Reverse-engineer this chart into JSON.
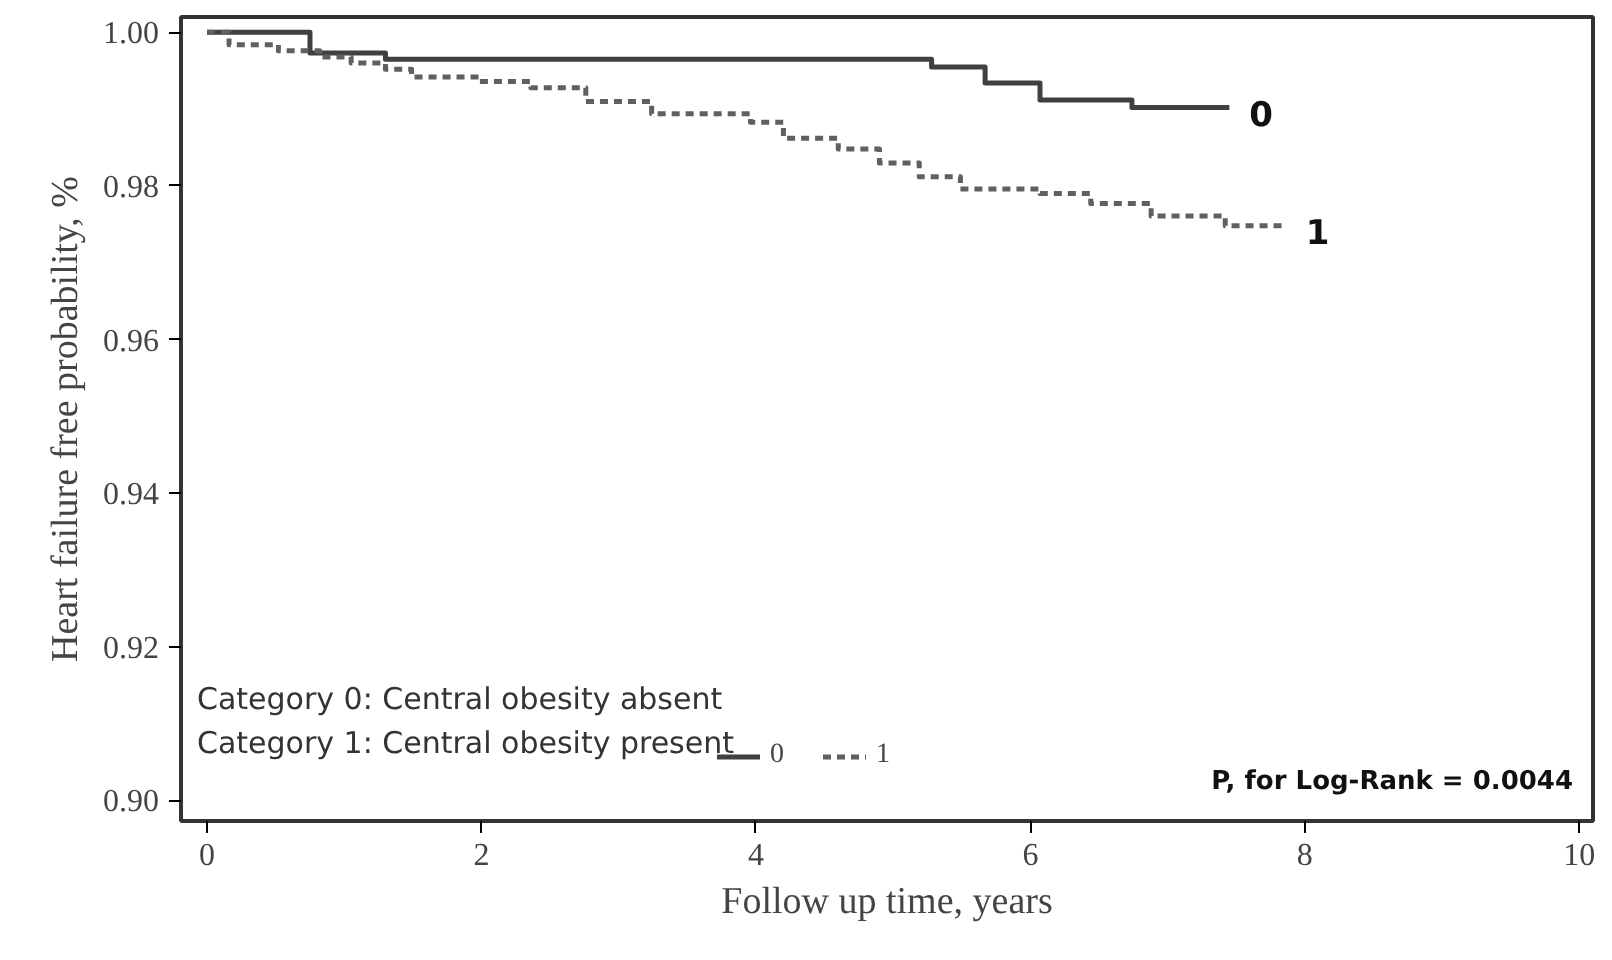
{
  "chart_data": {
    "type": "step",
    "xlabel": "Follow up time, years",
    "ylabel": "Heart failure free probability, %",
    "xlim": [
      -0.19,
      10.1
    ],
    "xticks": [
      0,
      2,
      4,
      6,
      8,
      10
    ],
    "ylim": [
      0.8973,
      1.002
    ],
    "yticks": [
      {
        "value": 0.9,
        "label": "0.90"
      },
      0.92,
      0.94,
      0.96,
      0.98,
      {
        "value": 1.0,
        "label": "1.00"
      }
    ],
    "grid": false,
    "legend": "bottom left",
    "marker": "none",
    "series": [
      {
        "name": "0",
        "color": "#404040",
        "line_style": "solid",
        "x": [
          0,
          0.75,
          1.3,
          5.28,
          5.67,
          6.07,
          6.74,
          7.45
        ],
        "values": [
          1.0,
          0.9973,
          0.9965,
          0.9955,
          0.9934,
          0.9912,
          0.9902,
          0.9902
        ]
      },
      {
        "name": "1",
        "color": "#606060",
        "line_style": "dashed",
        "x": [
          0,
          0.16,
          0.52,
          0.82,
          1.05,
          1.3,
          1.49,
          1.98,
          2.36,
          2.76,
          3.24,
          3.96,
          4.2,
          4.6,
          4.9,
          5.19,
          5.49,
          6.07,
          6.44,
          6.88,
          7.42,
          7.86
        ],
        "values": [
          1.0,
          0.9984,
          0.9976,
          0.9968,
          0.996,
          0.9952,
          0.9942,
          0.9936,
          0.9928,
          0.991,
          0.9894,
          0.9883,
          0.9862,
          0.9848,
          0.983,
          0.9812,
          0.9796,
          0.979,
          0.9777,
          0.9761,
          0.9748,
          0.9748
        ]
      }
    ],
    "annotations": [
      "Category 0: Central obesity absent",
      "Category 1: Central obesity present",
      "P, for Log-Rank = 0.0044"
    ]
  }
}
